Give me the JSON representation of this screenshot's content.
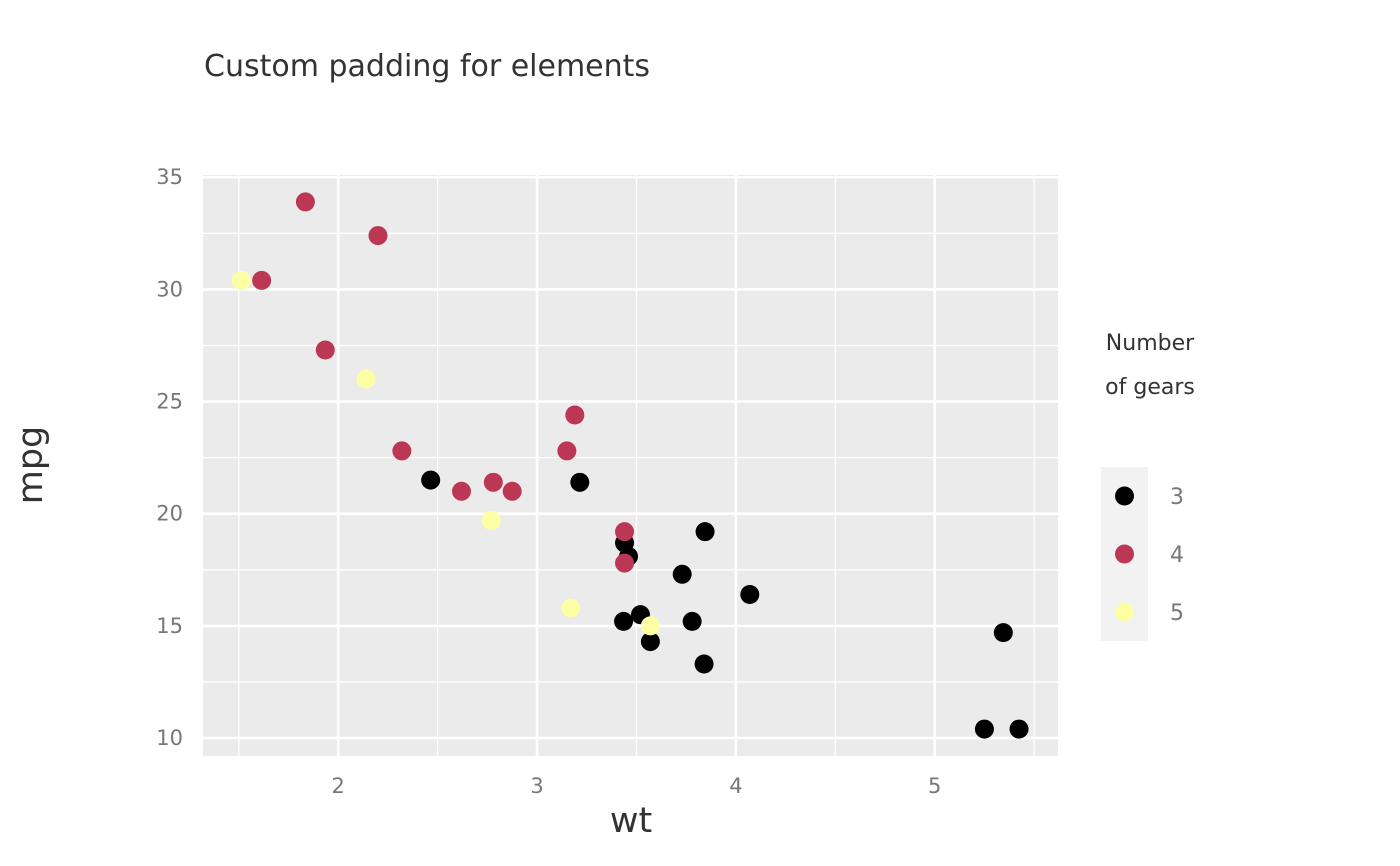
{
  "chart_data": {
    "type": "scatter",
    "title": "Custom padding for elements",
    "xlabel": "wt",
    "ylabel": "mpg",
    "xlim": [
      1.32,
      5.62
    ],
    "ylim": [
      9.2,
      35.1
    ],
    "x_ticks": [
      2,
      3,
      4,
      5
    ],
    "y_ticks": [
      10,
      15,
      20,
      25,
      30,
      35
    ],
    "x_tick_labels": [
      "2",
      "3",
      "4",
      "5"
    ],
    "y_tick_labels": [
      "10",
      "15",
      "20",
      "25",
      "30",
      "35"
    ],
    "grid": true,
    "legend": {
      "title_lines": [
        "Number",
        "of gears"
      ],
      "placement": "right"
    },
    "series": [
      {
        "name": "3",
        "color": "#000000",
        "points": [
          {
            "x": 2.465,
            "y": 21.5
          },
          {
            "x": 3.215,
            "y": 21.4
          },
          {
            "x": 3.44,
            "y": 18.7
          },
          {
            "x": 3.46,
            "y": 18.1
          },
          {
            "x": 3.57,
            "y": 14.3
          },
          {
            "x": 4.07,
            "y": 16.4
          },
          {
            "x": 3.73,
            "y": 17.3
          },
          {
            "x": 3.78,
            "y": 15.2
          },
          {
            "x": 5.25,
            "y": 10.4
          },
          {
            "x": 5.424,
            "y": 10.4
          },
          {
            "x": 5.345,
            "y": 14.7
          },
          {
            "x": 3.52,
            "y": 15.5
          },
          {
            "x": 3.435,
            "y": 15.2
          },
          {
            "x": 3.84,
            "y": 13.3
          },
          {
            "x": 3.845,
            "y": 19.2
          }
        ]
      },
      {
        "name": "4",
        "color": "#bc3754",
        "points": [
          {
            "x": 2.62,
            "y": 21.0
          },
          {
            "x": 2.875,
            "y": 21.0
          },
          {
            "x": 2.32,
            "y": 22.8
          },
          {
            "x": 3.19,
            "y": 24.4
          },
          {
            "x": 3.15,
            "y": 22.8
          },
          {
            "x": 3.44,
            "y": 19.2
          },
          {
            "x": 3.44,
            "y": 17.8
          },
          {
            "x": 2.2,
            "y": 32.4
          },
          {
            "x": 1.615,
            "y": 30.4
          },
          {
            "x": 1.835,
            "y": 33.9
          },
          {
            "x": 1.935,
            "y": 27.3
          },
          {
            "x": 2.78,
            "y": 21.4
          }
        ]
      },
      {
        "name": "5",
        "color": "#fcffa4",
        "points": [
          {
            "x": 2.14,
            "y": 26.0
          },
          {
            "x": 1.513,
            "y": 30.4
          },
          {
            "x": 3.17,
            "y": 15.8
          },
          {
            "x": 2.77,
            "y": 19.7
          },
          {
            "x": 3.57,
            "y": 15.0
          }
        ]
      }
    ]
  }
}
